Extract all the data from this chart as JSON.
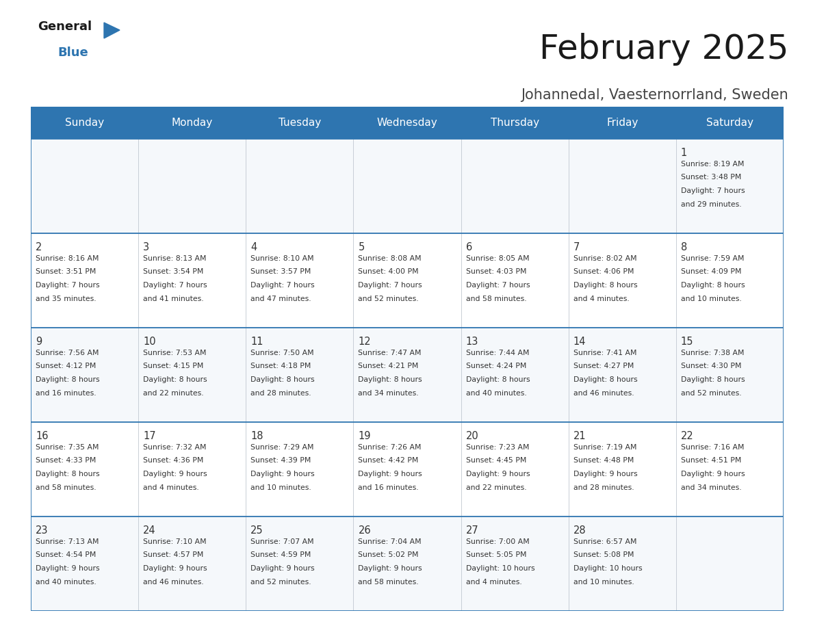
{
  "title": "February 2025",
  "subtitle": "Johannedal, Vaesternorrland, Sweden",
  "header_color": "#2e75b0",
  "header_text_color": "#ffffff",
  "border_color": "#2e75b0",
  "border_color_row": "#4472a8",
  "days_of_week": [
    "Sunday",
    "Monday",
    "Tuesday",
    "Wednesday",
    "Thursday",
    "Friday",
    "Saturday"
  ],
  "calendar": [
    [
      null,
      null,
      null,
      null,
      null,
      null,
      1
    ],
    [
      2,
      3,
      4,
      5,
      6,
      7,
      8
    ],
    [
      9,
      10,
      11,
      12,
      13,
      14,
      15
    ],
    [
      16,
      17,
      18,
      19,
      20,
      21,
      22
    ],
    [
      23,
      24,
      25,
      26,
      27,
      28,
      null
    ]
  ],
  "sunrise": {
    "1": "8:19 AM",
    "2": "8:16 AM",
    "3": "8:13 AM",
    "4": "8:10 AM",
    "5": "8:08 AM",
    "6": "8:05 AM",
    "7": "8:02 AM",
    "8": "7:59 AM",
    "9": "7:56 AM",
    "10": "7:53 AM",
    "11": "7:50 AM",
    "12": "7:47 AM",
    "13": "7:44 AM",
    "14": "7:41 AM",
    "15": "7:38 AM",
    "16": "7:35 AM",
    "17": "7:32 AM",
    "18": "7:29 AM",
    "19": "7:26 AM",
    "20": "7:23 AM",
    "21": "7:19 AM",
    "22": "7:16 AM",
    "23": "7:13 AM",
    "24": "7:10 AM",
    "25": "7:07 AM",
    "26": "7:04 AM",
    "27": "7:00 AM",
    "28": "6:57 AM"
  },
  "sunset": {
    "1": "3:48 PM",
    "2": "3:51 PM",
    "3": "3:54 PM",
    "4": "3:57 PM",
    "5": "4:00 PM",
    "6": "4:03 PM",
    "7": "4:06 PM",
    "8": "4:09 PM",
    "9": "4:12 PM",
    "10": "4:15 PM",
    "11": "4:18 PM",
    "12": "4:21 PM",
    "13": "4:24 PM",
    "14": "4:27 PM",
    "15": "4:30 PM",
    "16": "4:33 PM",
    "17": "4:36 PM",
    "18": "4:39 PM",
    "19": "4:42 PM",
    "20": "4:45 PM",
    "21": "4:48 PM",
    "22": "4:51 PM",
    "23": "4:54 PM",
    "24": "4:57 PM",
    "25": "4:59 PM",
    "26": "5:02 PM",
    "27": "5:05 PM",
    "28": "5:08 PM"
  },
  "daylight": {
    "1": [
      "7 hours",
      "and 29 minutes."
    ],
    "2": [
      "7 hours",
      "and 35 minutes."
    ],
    "3": [
      "7 hours",
      "and 41 minutes."
    ],
    "4": [
      "7 hours",
      "and 47 minutes."
    ],
    "5": [
      "7 hours",
      "and 52 minutes."
    ],
    "6": [
      "7 hours",
      "and 58 minutes."
    ],
    "7": [
      "8 hours",
      "and 4 minutes."
    ],
    "8": [
      "8 hours",
      "and 10 minutes."
    ],
    "9": [
      "8 hours",
      "and 16 minutes."
    ],
    "10": [
      "8 hours",
      "and 22 minutes."
    ],
    "11": [
      "8 hours",
      "and 28 minutes."
    ],
    "12": [
      "8 hours",
      "and 34 minutes."
    ],
    "13": [
      "8 hours",
      "and 40 minutes."
    ],
    "14": [
      "8 hours",
      "and 46 minutes."
    ],
    "15": [
      "8 hours",
      "and 52 minutes."
    ],
    "16": [
      "8 hours",
      "and 58 minutes."
    ],
    "17": [
      "9 hours",
      "and 4 minutes."
    ],
    "18": [
      "9 hours",
      "and 10 minutes."
    ],
    "19": [
      "9 hours",
      "and 16 minutes."
    ],
    "20": [
      "9 hours",
      "and 22 minutes."
    ],
    "21": [
      "9 hours",
      "and 28 minutes."
    ],
    "22": [
      "9 hours",
      "and 34 minutes."
    ],
    "23": [
      "9 hours",
      "and 40 minutes."
    ],
    "24": [
      "9 hours",
      "and 46 minutes."
    ],
    "25": [
      "9 hours",
      "and 52 minutes."
    ],
    "26": [
      "9 hours",
      "and 58 minutes."
    ],
    "27": [
      "10 hours",
      "and 4 minutes."
    ],
    "28": [
      "10 hours",
      "and 10 minutes."
    ]
  }
}
